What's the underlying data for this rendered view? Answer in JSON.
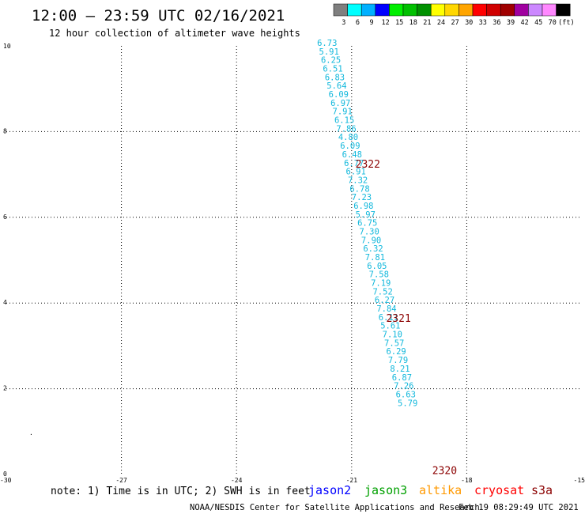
{
  "header": {
    "title": "12:00 — 23:59 UTC 02/16/2021",
    "subtitle": "12 hour collection of altimeter wave heights"
  },
  "colorbar": {
    "bins": [
      {
        "color": "#7f7f7f",
        "label": "3"
      },
      {
        "color": "#00ffff",
        "label": "6"
      },
      {
        "color": "#00b0ff",
        "label": "9"
      },
      {
        "color": "#0000ff",
        "label": "12"
      },
      {
        "color": "#00ee00",
        "label": "15"
      },
      {
        "color": "#00c000",
        "label": "18"
      },
      {
        "color": "#009000",
        "label": "21"
      },
      {
        "color": "#ffff00",
        "label": "24"
      },
      {
        "color": "#ffd700",
        "label": "27"
      },
      {
        "color": "#ffa500",
        "label": "30"
      },
      {
        "color": "#ff0000",
        "label": "33"
      },
      {
        "color": "#d00000",
        "label": "36"
      },
      {
        "color": "#a00000",
        "label": "39"
      },
      {
        "color": "#a000a0",
        "label": "42"
      },
      {
        "color": "#cc88ff",
        "label": "45"
      },
      {
        "color": "#ff88ff",
        "label": "70"
      },
      {
        "color": "#000000",
        "label": "(ft)"
      }
    ]
  },
  "chart_data": {
    "type": "scatter",
    "title": "12:00 — 23:59 UTC 02/16/2021",
    "subtitle": "12 hour collection of altimeter wave heights",
    "xlim": [
      -30,
      -15
    ],
    "ylim": [
      0,
      10
    ],
    "x_ticks": [
      -30,
      -27,
      -24,
      -21,
      -18,
      -15
    ],
    "x_tick_labels": [
      "-30",
      "-27",
      "-24",
      "-21",
      "-18",
      "-15"
    ],
    "y_ticks": [
      0,
      2,
      4,
      6,
      8,
      10
    ],
    "y_tick_labels": [
      "0",
      "2",
      "4",
      "6",
      "8",
      "10"
    ],
    "grid": true,
    "point_color": "#12b8dc",
    "series": [
      {
        "name": "",
        "points": [
          {
            "x": -21.9,
            "y": 10.0,
            "label": "6.73"
          },
          {
            "x": -21.85,
            "y": 9.8,
            "label": "5.91"
          },
          {
            "x": -21.8,
            "y": 9.6,
            "label": "6.25"
          },
          {
            "x": -21.75,
            "y": 9.4,
            "label": "6.51"
          },
          {
            "x": -21.7,
            "y": 9.2,
            "label": "6.83"
          },
          {
            "x": -21.65,
            "y": 9.0,
            "label": "5.64"
          },
          {
            "x": -21.6,
            "y": 8.8,
            "label": "6.09"
          },
          {
            "x": -21.55,
            "y": 8.6,
            "label": "6.97"
          },
          {
            "x": -21.5,
            "y": 8.4,
            "label": "7.91"
          },
          {
            "x": -21.45,
            "y": 8.2,
            "label": "6.15"
          },
          {
            "x": -21.4,
            "y": 8.0,
            "label": "7.86"
          },
          {
            "x": -21.35,
            "y": 7.8,
            "label": "4.80"
          },
          {
            "x": -21.3,
            "y": 7.6,
            "label": "6.09"
          },
          {
            "x": -21.25,
            "y": 7.4,
            "label": "6.48"
          },
          {
            "x": -21.2,
            "y": 7.2,
            "label": "6.77"
          },
          {
            "x": -21.15,
            "y": 7.0,
            "label": "6.91"
          },
          {
            "x": -21.1,
            "y": 6.8,
            "label": "7.32"
          },
          {
            "x": -21.05,
            "y": 6.6,
            "label": "6.78"
          },
          {
            "x": -21.0,
            "y": 6.4,
            "label": "7.23"
          },
          {
            "x": -20.95,
            "y": 6.2,
            "label": "6.98"
          },
          {
            "x": -20.9,
            "y": 6.0,
            "label": "5.97"
          },
          {
            "x": -20.85,
            "y": 5.8,
            "label": "6.75"
          },
          {
            "x": -20.8,
            "y": 5.6,
            "label": "7.30"
          },
          {
            "x": -20.75,
            "y": 5.4,
            "label": "7.90"
          },
          {
            "x": -20.7,
            "y": 5.2,
            "label": "6.32"
          },
          {
            "x": -20.65,
            "y": 5.0,
            "label": "7.81"
          },
          {
            "x": -20.6,
            "y": 4.8,
            "label": "6.05"
          },
          {
            "x": -20.55,
            "y": 4.6,
            "label": "7.58"
          },
          {
            "x": -20.5,
            "y": 4.4,
            "label": "7.19"
          },
          {
            "x": -20.45,
            "y": 4.2,
            "label": "7.52"
          },
          {
            "x": -20.4,
            "y": 4.0,
            "label": "6.27"
          },
          {
            "x": -20.35,
            "y": 3.8,
            "label": "7.84"
          },
          {
            "x": -20.3,
            "y": 3.6,
            "label": "6.11"
          },
          {
            "x": -20.25,
            "y": 3.4,
            "label": "5.61"
          },
          {
            "x": -20.2,
            "y": 3.2,
            "label": "7.10"
          },
          {
            "x": -20.15,
            "y": 3.0,
            "label": "7.57"
          },
          {
            "x": -20.1,
            "y": 2.8,
            "label": "6.29"
          },
          {
            "x": -20.05,
            "y": 2.6,
            "label": "7.79"
          },
          {
            "x": -20.0,
            "y": 2.4,
            "label": "8.21"
          },
          {
            "x": -19.95,
            "y": 2.2,
            "label": "6.87"
          },
          {
            "x": -19.9,
            "y": 2.0,
            "label": "7.26"
          },
          {
            "x": -19.85,
            "y": 1.8,
            "label": "6.63"
          },
          {
            "x": -19.8,
            "y": 1.6,
            "label": "5.79"
          }
        ]
      }
    ],
    "annotations": [
      {
        "text": "2322",
        "x": -20.9,
        "y": 7.2,
        "color": "#8b0000"
      },
      {
        "text": "2321",
        "x": -20.1,
        "y": 3.6,
        "color": "#8b0000"
      },
      {
        "text": "2320",
        "x": -18.9,
        "y": 0.05,
        "color": "#8b0000"
      }
    ]
  },
  "footer": {
    "note": "note: 1) Time is in UTC; 2) SWH is in feet",
    "satellites": [
      {
        "name": "jason2",
        "color": "#0000ff"
      },
      {
        "name": "jason3",
        "color": "#00a000"
      },
      {
        "name": "altika",
        "color": "#ff9900"
      },
      {
        "name": "cryosat",
        "color": "#ff0000"
      },
      {
        "name": "s3a",
        "color": "#8b0000"
      }
    ],
    "credit": "NOAA/NESDIS Center for Satellite Applications and Research",
    "timestamp": "Feb 19 08:29:49 UTC 2021"
  }
}
